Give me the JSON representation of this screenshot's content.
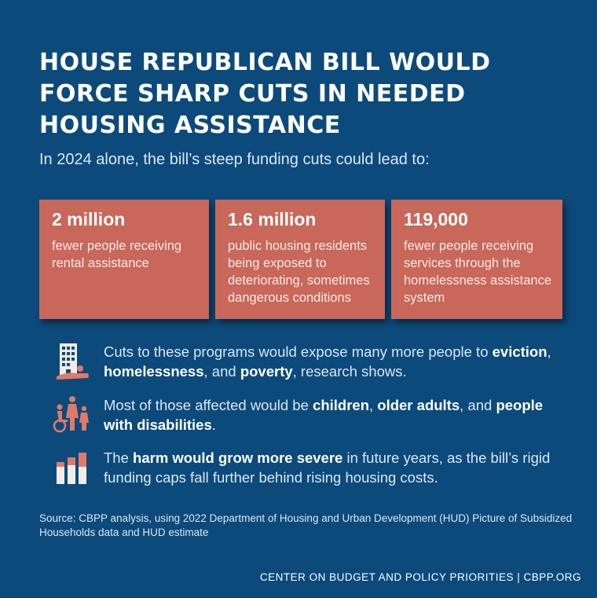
{
  "header": {
    "title": "HOUSE REPUBLICAN BILL WOULD FORCE SHARP CUTS IN NEEDED HOUSING ASSISTANCE",
    "subtitle": "In 2024 alone, the bill’s steep funding cuts could lead to:"
  },
  "stats": [
    {
      "number": "2 million",
      "description": "fewer people receiving rental assistance"
    },
    {
      "number": "1.6 million",
      "description": "public housing residents being exposed to deteriorating, sometimes dangerous conditions"
    },
    {
      "number": "119,000",
      "description": "fewer people receiving services through the homelessness assistance system"
    }
  ],
  "bullets": [
    {
      "icon": "building-eviction-icon",
      "parts": [
        "Cuts to these programs would expose many more people to ",
        "eviction",
        ", ",
        "homelessness",
        ", and ",
        "poverty",
        ", research shows."
      ]
    },
    {
      "icon": "family-disability-icon",
      "parts": [
        "Most of those affected would be ",
        "children",
        ", ",
        "older adults",
        ", and ",
        "people with disabilities",
        "."
      ]
    },
    {
      "icon": "bar-chart-icon",
      "parts": [
        "The ",
        "harm would grow more severe",
        " in future years, as the bill’s rigid funding caps fall further behind rising housing costs."
      ]
    }
  ],
  "source": "Source: CBPP analysis, using 2022 Department of Housing and Urban Development (HUD) Picture of Subsidized Households data and HUD estimate",
  "footer": "CENTER ON BUDGET AND POLICY PRIORITIES | CBPP.ORG",
  "colors": {
    "background": "#0c4a7c",
    "card": "#c8675a",
    "icon_accent": "#e07a68",
    "icon_light": "#f2ece6"
  }
}
